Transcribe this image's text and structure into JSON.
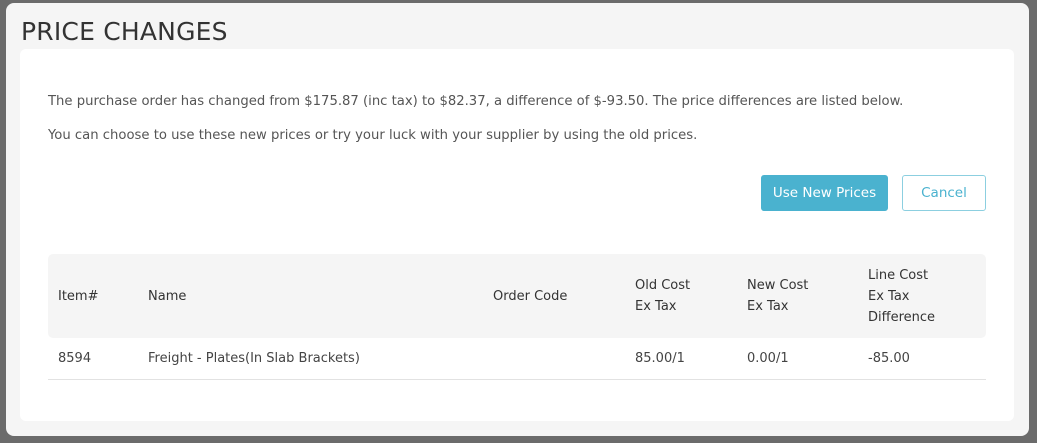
{
  "dialog": {
    "title": "PRICE CHANGES",
    "message": "The purchase order has changed from $175.87 (inc tax) to $82.37, a difference of $-93.50. The price differences are listed below.",
    "hint": "You can choose to use these new prices or try your luck with your supplier by using the old prices.",
    "use_new_prices_label": "Use New Prices",
    "cancel_label": "Cancel",
    "colors": {
      "accent": "#4ab2cf"
    }
  },
  "table": {
    "headers": [
      {
        "line1": "Item#",
        "line2": "",
        "line3": ""
      },
      {
        "line1": "Name",
        "line2": "",
        "line3": ""
      },
      {
        "line1": "Order Code",
        "line2": "",
        "line3": ""
      },
      {
        "line1": "Old Cost",
        "line2": "Ex Tax",
        "line3": ""
      },
      {
        "line1": "New Cost",
        "line2": "Ex Tax",
        "line3": ""
      },
      {
        "line1": "Line Cost",
        "line2": "Ex Tax",
        "line3": "Difference"
      }
    ],
    "rows": [
      {
        "item": "8594",
        "name": "Freight - Plates(In Slab Brackets)",
        "order_code": "",
        "old_cost": "85.00/1",
        "new_cost": "0.00/1",
        "difference": "-85.00"
      }
    ]
  }
}
